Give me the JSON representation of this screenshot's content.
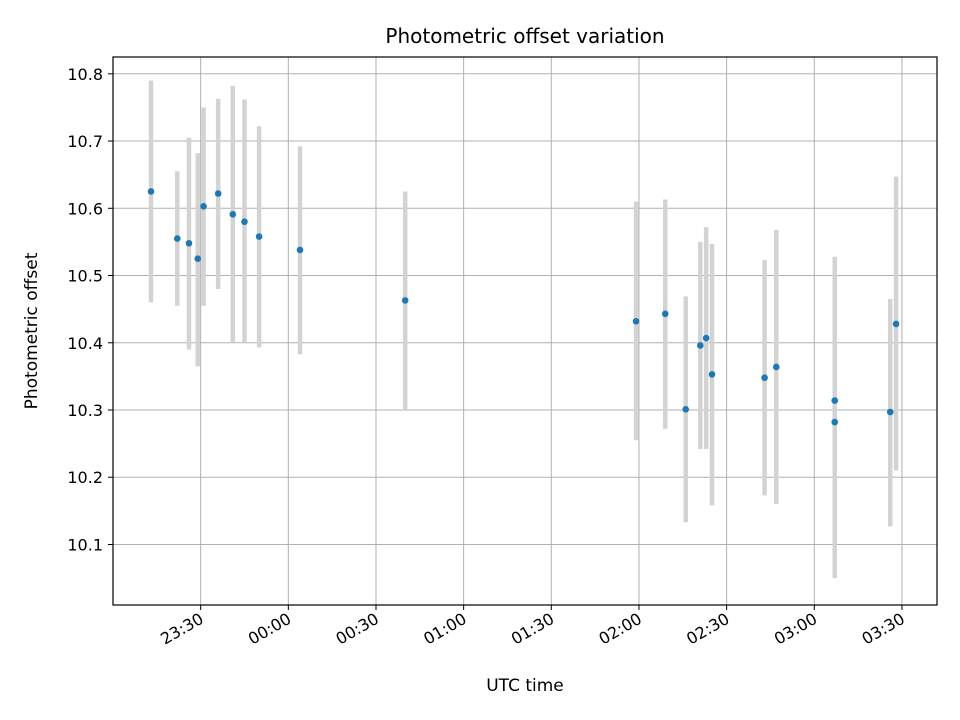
{
  "chart_data": {
    "type": "scatter",
    "title": "Photometric offset variation",
    "xlabel": "UTC time",
    "ylabel": "Photometric offset",
    "x_unit": "UTC time of night",
    "xlim": [
      "23:00",
      "03:42"
    ],
    "ylim": [
      10.01,
      10.825
    ],
    "x_ticks": [
      "23:30",
      "00:00",
      "00:30",
      "01:00",
      "01:30",
      "02:00",
      "02:30",
      "03:00",
      "03:30"
    ],
    "y_ticks": [
      10.1,
      10.2,
      10.3,
      10.4,
      10.5,
      10.6,
      10.7,
      10.8
    ],
    "grid": true,
    "legend": "none",
    "colors": {
      "marker": "#1f77b4",
      "errorbar": "#d3d3d3",
      "grid": "#b0b0b0"
    },
    "points": [
      {
        "x": "23:13",
        "y": 10.625,
        "low": 10.46,
        "high": 10.79
      },
      {
        "x": "23:22",
        "y": 10.555,
        "low": 10.455,
        "high": 10.655
      },
      {
        "x": "23:26",
        "y": 10.548,
        "low": 10.39,
        "high": 10.705
      },
      {
        "x": "23:29",
        "y": 10.525,
        "low": 10.365,
        "high": 10.682
      },
      {
        "x": "23:31",
        "y": 10.603,
        "low": 10.455,
        "high": 10.75
      },
      {
        "x": "23:36",
        "y": 10.622,
        "low": 10.48,
        "high": 10.763
      },
      {
        "x": "23:41",
        "y": 10.591,
        "low": 10.4,
        "high": 10.782
      },
      {
        "x": "23:45",
        "y": 10.58,
        "low": 10.4,
        "high": 10.762
      },
      {
        "x": "23:50",
        "y": 10.558,
        "low": 10.393,
        "high": 10.722
      },
      {
        "x": "00:04",
        "y": 10.538,
        "low": 10.383,
        "high": 10.692
      },
      {
        "x": "00:40",
        "y": 10.463,
        "low": 10.3,
        "high": 10.625
      },
      {
        "x": "01:59",
        "y": 10.432,
        "low": 10.255,
        "high": 10.61
      },
      {
        "x": "02:09",
        "y": 10.443,
        "low": 10.272,
        "high": 10.613
      },
      {
        "x": "02:16",
        "y": 10.301,
        "low": 10.133,
        "high": 10.469
      },
      {
        "x": "02:21",
        "y": 10.396,
        "low": 10.242,
        "high": 10.55
      },
      {
        "x": "02:23",
        "y": 10.407,
        "low": 10.242,
        "high": 10.572
      },
      {
        "x": "02:25",
        "y": 10.353,
        "low": 10.158,
        "high": 10.547
      },
      {
        "x": "02:43",
        "y": 10.348,
        "low": 10.173,
        "high": 10.523
      },
      {
        "x": "02:47",
        "y": 10.364,
        "low": 10.16,
        "high": 10.568
      },
      {
        "x": "03:07",
        "y": 10.314,
        "low": 10.1,
        "high": 10.528
      },
      {
        "x": "03:07",
        "y": 10.282,
        "low": 10.05,
        "high": 10.514
      },
      {
        "x": "03:26",
        "y": 10.297,
        "low": 10.127,
        "high": 10.465
      },
      {
        "x": "03:28",
        "y": 10.428,
        "low": 10.21,
        "high": 10.647
      }
    ]
  }
}
